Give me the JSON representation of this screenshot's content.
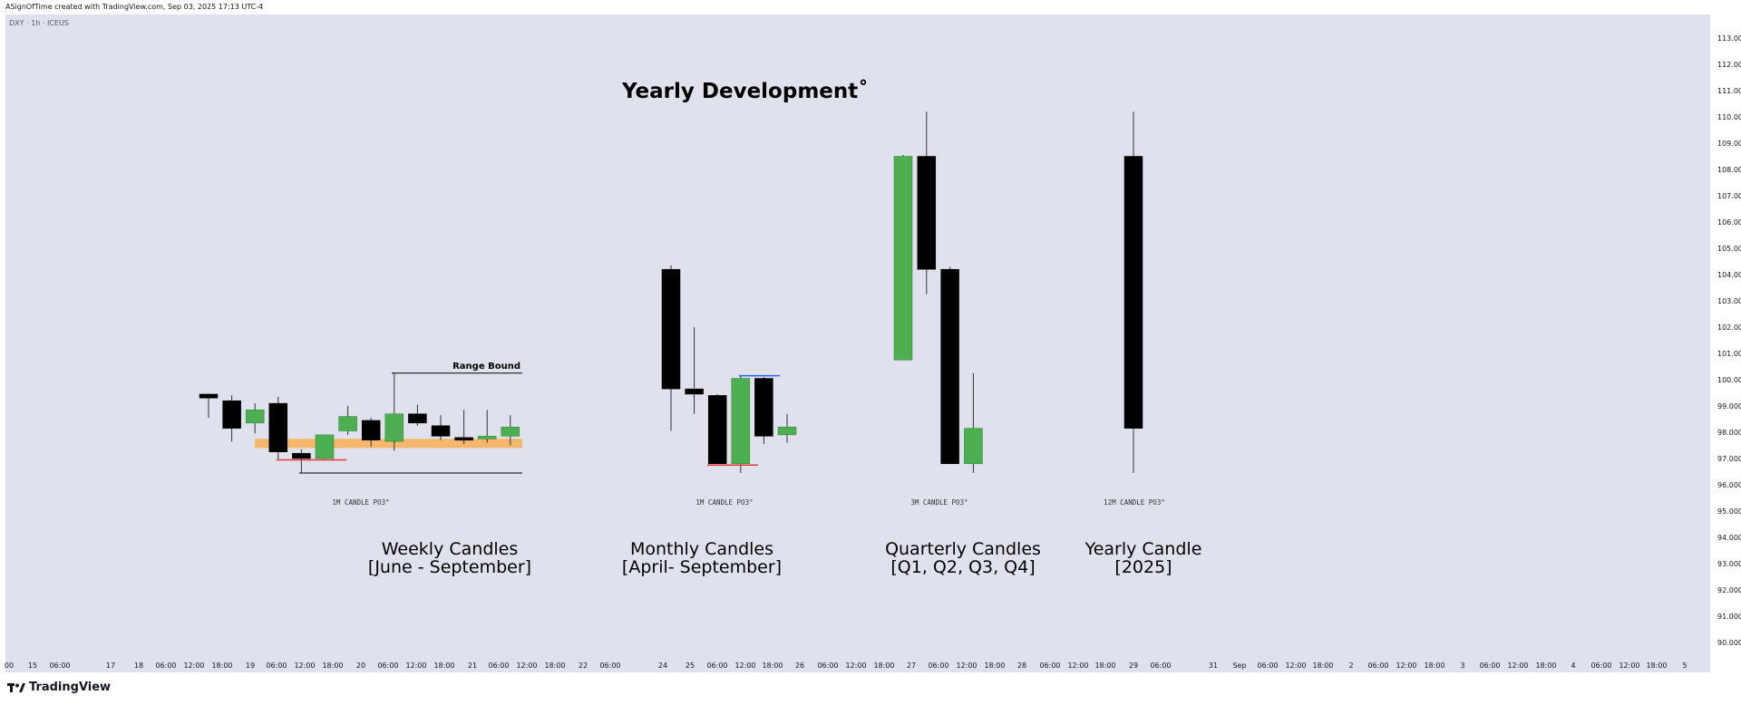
{
  "header": {
    "created_by": "ASignOfTime created with TradingView.com, Sep 03, 2025 17:13 UTC-4",
    "symbol": "DXY · 1h · ICEUS"
  },
  "footer": {
    "brand": "TradingView",
    "logo_icon": "tradingview-logo-icon"
  },
  "colors": {
    "background": "#dfe2ec",
    "bull": "#4caf50",
    "bear": "#000000",
    "zone": "#f4b76b",
    "red_line": "#e53935",
    "blue_line": "#2962ff"
  },
  "chart_data": {
    "type": "candlestick",
    "title": "Yearly Development˚",
    "price_axis": {
      "ticks": [
        "113.000",
        "112.000",
        "111.000",
        "110.000",
        "109.000",
        "108.000",
        "107.000",
        "106.000",
        "105.000",
        "104.000",
        "103.000",
        "102.000",
        "101.000",
        "100.000",
        "99.000",
        "98.000",
        "97.000",
        "96.000",
        "95.000",
        "94.000",
        "93.000",
        "92.000",
        "91.000",
        "90.000"
      ],
      "range": [
        89.5,
        113.6
      ]
    },
    "time_axis": {
      "ticks": [
        "00",
        "15",
        "06:00",
        "17",
        "18",
        "06:00",
        "12:00",
        "18:00",
        "19",
        "06:00",
        "12:00",
        "18:00",
        "20",
        "06:00",
        "12:00",
        "18:00",
        "21",
        "06:00",
        "12:00",
        "18:00",
        "22",
        "06:00",
        "24",
        "25",
        "06:00",
        "12:00",
        "18:00",
        "26",
        "06:00",
        "12:00",
        "18:00",
        "27",
        "06:00",
        "12:00",
        "18:00",
        "28",
        "06:00",
        "12:00",
        "18:00",
        "29",
        "06:00",
        "31",
        "Sep",
        "06:00",
        "12:00",
        "18:00",
        "2",
        "06:00",
        "12:00",
        "18:00",
        "3",
        "06:00",
        "12:00",
        "18:00",
        "4",
        "06:00",
        "12:00",
        "18:00",
        "5"
      ]
    },
    "groups": [
      {
        "name": "weekly",
        "label_line1": "Weekly Candles",
        "label_line2": "[June - September]",
        "small_label": "1M CANDLE PO3°",
        "annotation": "Range Bound",
        "candles": [
          {
            "o": 99.45,
            "h": 99.45,
            "l": 98.55,
            "c": 99.3
          },
          {
            "o": 99.2,
            "h": 99.4,
            "l": 97.65,
            "c": 98.15
          },
          {
            "o": 98.35,
            "h": 99.1,
            "l": 97.95,
            "c": 98.85
          },
          {
            "o": 99.1,
            "h": 99.35,
            "l": 96.95,
            "c": 97.25
          },
          {
            "o": 97.2,
            "h": 97.35,
            "l": 96.45,
            "c": 97.0
          },
          {
            "o": 97.0,
            "h": 97.9,
            "l": 96.95,
            "c": 97.9
          },
          {
            "o": 98.05,
            "h": 99.0,
            "l": 97.9,
            "c": 98.6
          },
          {
            "o": 98.45,
            "h": 98.55,
            "l": 97.45,
            "c": 97.7
          },
          {
            "o": 97.65,
            "h": 100.25,
            "l": 97.3,
            "c": 98.7
          },
          {
            "o": 98.7,
            "h": 99.05,
            "l": 98.25,
            "c": 98.35
          },
          {
            "o": 98.25,
            "h": 98.65,
            "l": 97.7,
            "c": 97.85
          },
          {
            "o": 97.8,
            "h": 98.85,
            "l": 97.55,
            "c": 97.75
          },
          {
            "o": 97.75,
            "h": 98.85,
            "l": 97.6,
            "c": 97.85
          },
          {
            "o": 97.85,
            "h": 98.65,
            "l": 97.5,
            "c": 98.2
          }
        ],
        "zone": {
          "low": 97.4,
          "high": 97.75
        },
        "range_high": 100.25,
        "range_low": 96.45,
        "red_level": 96.95
      },
      {
        "name": "monthly",
        "label_line1": "Monthly Candles",
        "label_line2": "[April- September]",
        "small_label": "1M CANDLE PO3°",
        "candles": [
          {
            "o": 104.2,
            "h": 104.35,
            "l": 98.05,
            "c": 99.65
          },
          {
            "o": 99.65,
            "h": 102.0,
            "l": 98.7,
            "c": 99.45
          },
          {
            "o": 99.4,
            "h": 99.45,
            "l": 96.8,
            "c": 96.8
          },
          {
            "o": 96.8,
            "h": 100.15,
            "l": 96.45,
            "c": 100.05
          },
          {
            "o": 100.05,
            "h": 100.1,
            "l": 97.55,
            "c": 97.85
          },
          {
            "o": 97.9,
            "h": 98.7,
            "l": 97.6,
            "c": 98.2
          }
        ],
        "red_level": 96.75,
        "blue_level": 100.15
      },
      {
        "name": "quarterly",
        "label_line1": "Quarterly Candles",
        "label_line2": "[Q1, Q2, Q3, Q4]",
        "small_label": "3M CANDLE PO3°",
        "candles": [
          {
            "o": 100.75,
            "h": 108.55,
            "l": 100.75,
            "c": 108.5
          },
          {
            "o": 108.5,
            "h": 110.2,
            "l": 103.25,
            "c": 104.2
          },
          {
            "o": 104.2,
            "h": 104.3,
            "l": 96.8,
            "c": 96.8
          },
          {
            "o": 96.8,
            "h": 100.25,
            "l": 96.45,
            "c": 98.15
          }
        ]
      },
      {
        "name": "yearly",
        "label_line1": "Yearly Candle",
        "label_line2": "[2025]",
        "small_label": "12M CANDLE PO3°",
        "candles": [
          {
            "o": 108.5,
            "h": 110.2,
            "l": 96.45,
            "c": 98.15
          }
        ]
      }
    ]
  }
}
